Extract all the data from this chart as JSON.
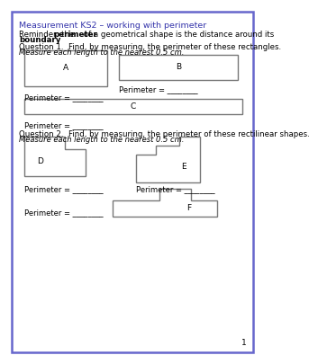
{
  "title": "Measurement KS2 – working with perimeter",
  "title_color": "#3333aa",
  "background_color": "#ffffff",
  "border_color": "#6666cc",
  "q1_text": "Question 1.  Find, by measuring, the perimeter of these rectangles.",
  "q1_italic": "Measure each length to the nearest 0.5 cm.",
  "q2_text": "Question 2.  Find, by measuring, the perimeter of these rectilinear shapes.",
  "q2_italic": "Measure each length to the nearest 0.5 cm.",
  "perimeter_label": "Perimeter = ________",
  "page_number": "1",
  "shape_edge_color": "#777777"
}
